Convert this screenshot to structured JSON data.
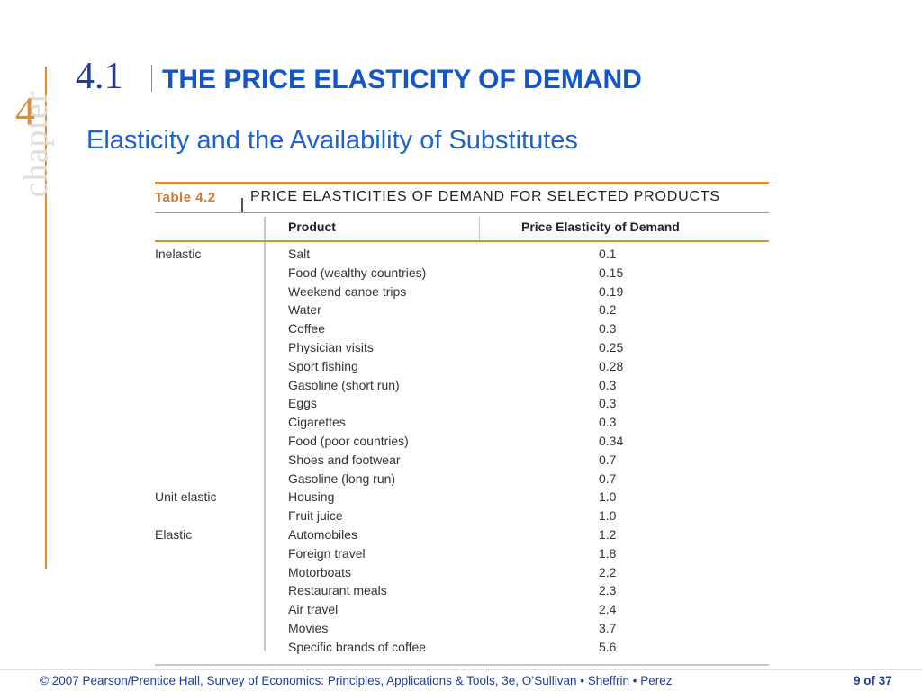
{
  "sidebar": {
    "chapter_word": "chapter",
    "chapter_number": "4"
  },
  "header": {
    "section_number": "4.1",
    "title": "THE PRICE ELASTICITY OF DEMAND",
    "subtitle": "Elasticity and the Availability of Substitutes"
  },
  "table": {
    "label": "Table 4.2",
    "caption": "PRICE ELASTICITIES OF DEMAND FOR SELECTED PRODUCTS",
    "columns": [
      "Product",
      "Price Elasticity of Demand"
    ],
    "rows": [
      {
        "category": "Inelastic",
        "product": "Salt",
        "value": "0.1"
      },
      {
        "category": "",
        "product": "Food (wealthy countries)",
        "value": "0.15"
      },
      {
        "category": "",
        "product": "Weekend canoe trips",
        "value": "0.19"
      },
      {
        "category": "",
        "product": "Water",
        "value": "0.2"
      },
      {
        "category": "",
        "product": "Coffee",
        "value": "0.3"
      },
      {
        "category": "",
        "product": "Physician visits",
        "value": "0.25"
      },
      {
        "category": "",
        "product": "Sport fishing",
        "value": "0.28"
      },
      {
        "category": "",
        "product": "Gasoline (short run)",
        "value": "0.3"
      },
      {
        "category": "",
        "product": "Eggs",
        "value": "0.3"
      },
      {
        "category": "",
        "product": "Cigarettes",
        "value": "0.3"
      },
      {
        "category": "",
        "product": "Food (poor countries)",
        "value": "0.34"
      },
      {
        "category": "",
        "product": "Shoes and footwear",
        "value": "0.7"
      },
      {
        "category": "",
        "product": "Gasoline (long run)",
        "value": "0.7"
      },
      {
        "category": "Unit elastic",
        "product": "Housing",
        "value": "1.0"
      },
      {
        "category": "",
        "product": "Fruit juice",
        "value": "1.0"
      },
      {
        "category": "Elastic",
        "product": "Automobiles",
        "value": "1.2"
      },
      {
        "category": "",
        "product": "Foreign travel",
        "value": "1.8"
      },
      {
        "category": "",
        "product": "Motorboats",
        "value": "2.2"
      },
      {
        "category": "",
        "product": "Restaurant meals",
        "value": "2.3"
      },
      {
        "category": "",
        "product": "Air travel",
        "value": "2.4"
      },
      {
        "category": "",
        "product": "Movies",
        "value": "3.7"
      },
      {
        "category": "",
        "product": "Specific brands of coffee",
        "value": "5.6"
      }
    ]
  },
  "footer": {
    "copyright": "© 2007 Pearson/Prentice Hall, Survey of Economics: Principles, Applications & Tools, 3e, O’Sullivan • Sheffrin • Perez",
    "page": "9 of 37"
  },
  "colors": {
    "accent": "#e58a2f",
    "title_blue": "#1456c8",
    "footer_blue": "#1f3d99"
  }
}
